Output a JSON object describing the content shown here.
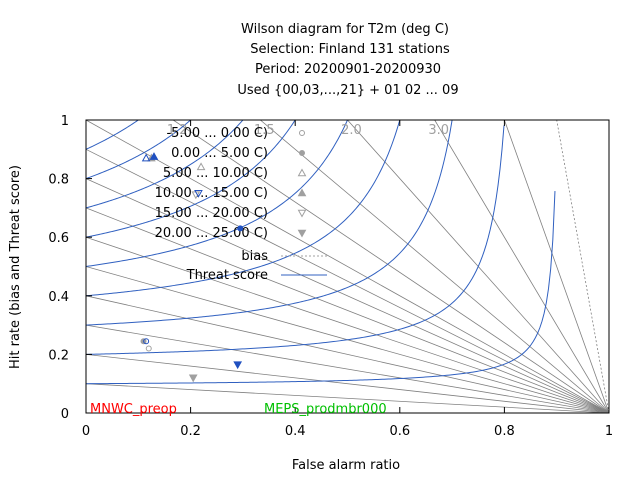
{
  "chart_data": {
    "type": "scatter",
    "title_lines": [
      "Wilson diagram  for T2m (deg C)",
      "Selection: Finland     131 stations",
      "Period: 20200901-20200930",
      "Used {00,03,...,21} + 01 02 ... 09"
    ],
    "xlabel": "False alarm ratio",
    "ylabel": "Hit rate (bias and Threat score)",
    "xlim": [
      0,
      1
    ],
    "ylim": [
      0,
      1
    ],
    "x_ticks": [
      "0",
      "0.2",
      "0.4",
      "0.6",
      "0.8",
      "1"
    ],
    "y_ticks": [
      "0",
      "0.2",
      "0.4",
      "0.6",
      "0.8",
      "1"
    ],
    "bias_labels": [
      "1.2",
      "1.5",
      "2.0",
      "3.0"
    ],
    "bias_values": [
      0.1,
      0.2,
      0.3,
      0.4,
      0.5,
      0.6,
      0.7,
      0.8,
      0.9,
      1.0,
      1.2,
      1.5,
      2.0,
      3.0,
      5.0,
      10.0
    ],
    "threat_score_values": [
      0.1,
      0.2,
      0.3,
      0.4,
      0.5,
      0.6,
      0.7,
      0.8,
      0.9
    ],
    "legend": [
      {
        "label": "-5.00 ... 0.00 C)",
        "marker": "open-circle"
      },
      {
        "label": "0.00 ... 5.00 C)",
        "marker": "filled-circle"
      },
      {
        "label": "5.00 ... 10.00 C)",
        "marker": "open-triangle-up"
      },
      {
        "label": "10.00 ... 15.00 C)",
        "marker": "filled-triangle-up"
      },
      {
        "label": "15.00 ... 20.00 C)",
        "marker": "open-triangle-down"
      },
      {
        "label": "20.00 ... 25.00 C)",
        "marker": "filled-triangle-down"
      }
    ],
    "legend_lines": [
      {
        "label": "bias",
        "style": "dotted-gray"
      },
      {
        "label": "Threat score",
        "style": "solid-blue"
      }
    ],
    "models": [
      {
        "name": "MNWC_preop",
        "color": "#ff0000"
      },
      {
        "name": "MEPS_prodmbr000",
        "color": "#00c000"
      }
    ],
    "points": [
      {
        "model": "MNWC_preop",
        "marker": "open-circle",
        "x": 0.12,
        "y": 0.22
      },
      {
        "model": "MNWC_preop",
        "marker": "filled-circle",
        "x": 0.11,
        "y": 0.245
      },
      {
        "model": "MNWC_preop",
        "marker": "open-triangle-up",
        "x": 0.22,
        "y": 0.84
      },
      {
        "model": "MNWC_preop",
        "marker": "filled-triangle-up",
        "x": 0.125,
        "y": 0.87
      },
      {
        "model": "MNWC_preop",
        "marker": "open-triangle-down",
        "x": 0.21,
        "y": 0.745
      },
      {
        "model": "MNWC_preop",
        "marker": "filled-triangle-down",
        "x": 0.205,
        "y": 0.12
      },
      {
        "model": "MEPS_prodmbr000",
        "marker": "open-circle",
        "x": 0.115,
        "y": 0.245
      },
      {
        "model": "MEPS_prodmbr000",
        "marker": "filled-circle",
        "x": 0.295,
        "y": 0.63
      },
      {
        "model": "MEPS_prodmbr000",
        "marker": "open-triangle-up",
        "x": 0.115,
        "y": 0.87
      },
      {
        "model": "MEPS_prodmbr000",
        "marker": "filled-triangle-up",
        "x": 0.13,
        "y": 0.875
      },
      {
        "model": "MEPS_prodmbr000",
        "marker": "open-triangle-down",
        "x": 0.215,
        "y": 0.75
      },
      {
        "model": "MEPS_prodmbr000",
        "marker": "filled-triangle-down",
        "x": 0.29,
        "y": 0.165
      }
    ],
    "colors": {
      "markers_model1": "#a0a0a0",
      "markers_model2": "#2050c0",
      "threat_line": "#3060c0",
      "bias_line": "#808080"
    }
  }
}
